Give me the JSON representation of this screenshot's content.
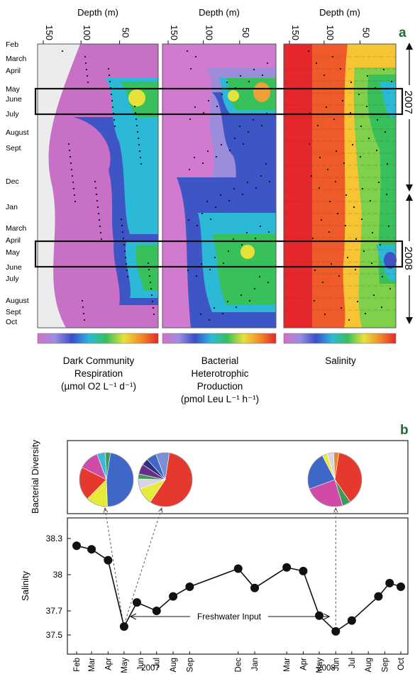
{
  "panel_labels": {
    "a": "a",
    "b": "b"
  },
  "colors": {
    "panel_label": "#1f6b3a",
    "salinity_line": "#111111",
    "panel_border": "#222222"
  },
  "chart_data": [
    {
      "type": "heatmap",
      "panel": "a",
      "title": "",
      "depth_axis_label": "Depth (m)",
      "depth_ticks": [
        "150",
        "100",
        "50"
      ],
      "month_labels": [
        "Feb",
        "March",
        "April",
        "May",
        "June",
        "July",
        "August",
        "Sept",
        "Dec",
        "Jan",
        "March",
        "April",
        "May",
        "June",
        "July",
        "August",
        "Sept",
        "Oct"
      ],
      "year_labels": [
        "2007",
        "2008"
      ],
      "highlighted_periods": [
        "May–July 2007",
        "June–July 2008"
      ],
      "panels": [
        {
          "name_lines": [
            "Dark Community",
            "Respiration",
            "(µmol O2 L⁻¹ d⁻¹)"
          ],
          "colorscale": [
            "#d46fc9",
            "#9d8ee0",
            "#3a4fc8",
            "#2cb9d8",
            "#38c05a",
            "#e7e23a",
            "#f28c2a",
            "#e5262b"
          ]
        },
        {
          "name_lines": [
            "Bacterial",
            "Heterotrophic",
            "Production",
            "(pmol Leu L⁻¹ h⁻¹)"
          ],
          "colorscale": [
            "#d46fc9",
            "#9d8ee0",
            "#3a4fc8",
            "#2cb9d8",
            "#38c05a",
            "#e7e23a",
            "#f28c2a",
            "#e5262b"
          ]
        },
        {
          "name_lines": [
            "Salinity"
          ],
          "colorscale": [
            "#d46fc9",
            "#9d8ee0",
            "#3a4fc8",
            "#2cb9d8",
            "#38c05a",
            "#e7e23a",
            "#f28c2a",
            "#e5262b"
          ]
        }
      ]
    },
    {
      "type": "pie",
      "panel": "b",
      "ylabel": "Bacterial Diversity",
      "pies": [
        {
          "values": [
            47,
            13,
            20,
            12,
            5,
            3
          ],
          "colors": [
            "#3f67c8",
            "#e6ea3a",
            "#e5392d",
            "#d04aa8",
            "#3fb8d6",
            "#3e9a58"
          ]
        },
        {
          "values": [
            57,
            10,
            6,
            3,
            6,
            4,
            6,
            8
          ],
          "colors": [
            "#e5392d",
            "#e6ea3a",
            "#d9d4e8",
            "#3e9a58",
            "#6a2b8a",
            "#2a2f7a",
            "#3f67c8",
            "#7b8fd6"
          ]
        },
        {
          "values": [
            38,
            5,
            24,
            23,
            3,
            4,
            3
          ],
          "colors": [
            "#e5392d",
            "#3e9a58",
            "#d04aa8",
            "#3f67c8",
            "#e6ea3a",
            "#d9d4e8",
            "#e58a2a"
          ]
        }
      ]
    },
    {
      "type": "line",
      "panel": "b",
      "xlabel": "",
      "ylabel": "Salinity",
      "ylim": [
        37.4,
        38.4
      ],
      "yticks": [
        "38.3",
        "38",
        "37.7",
        "37.5"
      ],
      "ytick_values": [
        38.3,
        38.0,
        37.7,
        37.5
      ],
      "x_tick_labels": [
        "Feb",
        "Mar",
        "Apr",
        "May",
        "Jun",
        "Jul",
        "Aug",
        "Sep",
        "Dec",
        "Jan",
        "Mar",
        "Apr",
        "May",
        "Jun",
        "Jul",
        "Aug",
        "Sep",
        "Oct"
      ],
      "x_tick_dates": [
        "2007-02-01",
        "2007-03-01",
        "2007-04-01",
        "2007-05-01",
        "2007-06-01",
        "2007-07-01",
        "2007-08-01",
        "2007-09-01",
        "2007-12-01",
        "2008-01-01",
        "2008-03-01",
        "2008-04-01",
        "2008-05-01",
        "2008-06-01",
        "2008-07-01",
        "2008-08-01",
        "2008-09-01",
        "2008-10-01"
      ],
      "year_labels": [
        "2007",
        "2008"
      ],
      "annotation": "Freshwater Input",
      "series": [
        {
          "x": [
            "2007-02-01",
            "2007-03-01",
            "2007-04-01",
            "2007-05-01",
            "2007-05-25",
            "2007-07-01",
            "2007-08-01",
            "2007-09-01",
            "2007-12-01",
            "2008-01-01",
            "2008-03-01",
            "2008-04-01",
            "2008-05-01",
            "2008-06-01",
            "2008-07-01",
            "2008-08-20",
            "2008-09-10",
            "2008-10-01"
          ],
          "values": [
            38.24,
            38.21,
            38.12,
            37.57,
            37.77,
            37.7,
            37.82,
            37.9,
            38.05,
            37.89,
            38.06,
            38.03,
            37.66,
            37.53,
            37.62,
            37.82,
            37.93,
            37.9
          ]
        }
      ]
    }
  ]
}
